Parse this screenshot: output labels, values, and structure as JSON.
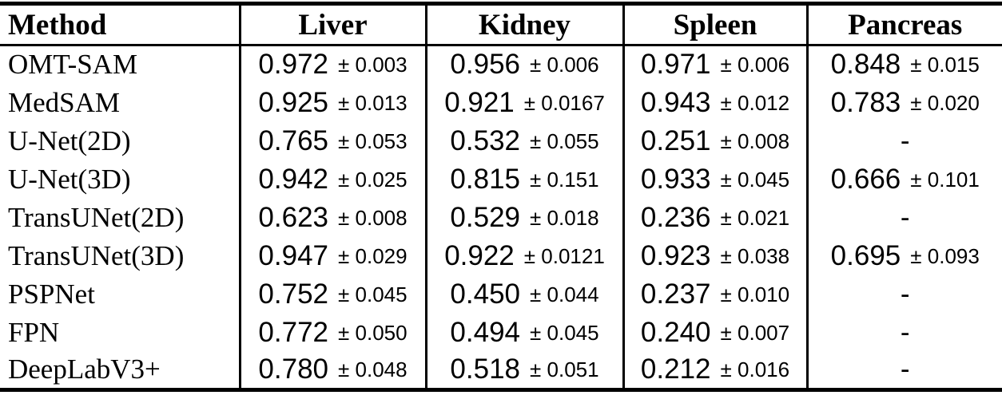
{
  "colors": {
    "text": "#000000",
    "background": "#ffffff",
    "rule": "#000000"
  },
  "table": {
    "columns": [
      "Method",
      "Liver",
      "Kidney",
      "Spleen",
      "Pancreas"
    ],
    "rows": [
      {
        "method": "OMT-SAM",
        "cells": [
          {
            "v": "0.972",
            "pm": "± 0.003"
          },
          {
            "v": "0.956",
            "pm": "± 0.006"
          },
          {
            "v": "0.971",
            "pm": "± 0.006"
          },
          {
            "v": "0.848",
            "pm": "± 0.015"
          }
        ]
      },
      {
        "method": "MedSAM",
        "cells": [
          {
            "v": "0.925",
            "pm": "± 0.013"
          },
          {
            "v": "0.921",
            "pm": "± 0.0167"
          },
          {
            "v": "0.943",
            "pm": "± 0.012"
          },
          {
            "v": "0.783",
            "pm": "± 0.020"
          }
        ]
      },
      {
        "method": "U-Net(2D)",
        "cells": [
          {
            "v": "0.765",
            "pm": "± 0.053"
          },
          {
            "v": "0.532",
            "pm": "± 0.055"
          },
          {
            "v": "0.251",
            "pm": "± 0.008"
          },
          {
            "v": "-",
            "pm": ""
          }
        ]
      },
      {
        "method": "U-Net(3D)",
        "cells": [
          {
            "v": "0.942",
            "pm": "± 0.025"
          },
          {
            "v": "0.815",
            "pm": "± 0.151"
          },
          {
            "v": "0.933",
            "pm": "± 0.045"
          },
          {
            "v": "0.666",
            "pm": "± 0.101"
          }
        ]
      },
      {
        "method": "TransUNet(2D)",
        "cells": [
          {
            "v": "0.623",
            "pm": "± 0.008"
          },
          {
            "v": "0.529",
            "pm": "± 0.018"
          },
          {
            "v": "0.236",
            "pm": "± 0.021"
          },
          {
            "v": "-",
            "pm": ""
          }
        ]
      },
      {
        "method": "TransUNet(3D)",
        "cells": [
          {
            "v": "0.947",
            "pm": "± 0.029"
          },
          {
            "v": "0.922",
            "pm": "± 0.0121"
          },
          {
            "v": "0.923",
            "pm": "± 0.038"
          },
          {
            "v": "0.695",
            "pm": "± 0.093"
          }
        ]
      },
      {
        "method": "PSPNet",
        "cells": [
          {
            "v": "0.752",
            "pm": "± 0.045"
          },
          {
            "v": "0.450",
            "pm": "± 0.044"
          },
          {
            "v": "0.237",
            "pm": "± 0.010"
          },
          {
            "v": "-",
            "pm": ""
          }
        ]
      },
      {
        "method": "FPN",
        "cells": [
          {
            "v": "0.772",
            "pm": "± 0.050"
          },
          {
            "v": "0.494",
            "pm": "± 0.045"
          },
          {
            "v": "0.240",
            "pm": "± 0.007"
          },
          {
            "v": "-",
            "pm": ""
          }
        ]
      },
      {
        "method": "DeepLabV3+",
        "cells": [
          {
            "v": "0.780",
            "pm": "± 0.048"
          },
          {
            "v": "0.518",
            "pm": "± 0.051"
          },
          {
            "v": "0.212",
            "pm": "± 0.016"
          },
          {
            "v": "-",
            "pm": ""
          }
        ]
      }
    ]
  }
}
